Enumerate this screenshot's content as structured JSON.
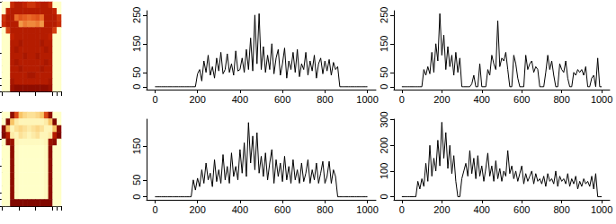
{
  "chart_data": [
    {
      "type": "heatmap",
      "tick_labels": false,
      "color_range": [
        0,
        255
      ],
      "cells": [
        [
          0,
          0,
          180,
          200,
          200,
          190,
          170,
          170,
          190,
          200,
          200,
          180,
          0,
          0
        ],
        [
          0,
          190,
          200,
          200,
          200,
          200,
          200,
          200,
          200,
          200,
          200,
          200,
          190,
          0
        ],
        [
          170,
          200,
          200,
          120,
          140,
          130,
          120,
          130,
          140,
          120,
          200,
          200,
          200,
          170
        ],
        [
          180,
          200,
          200,
          200,
          90,
          110,
          100,
          100,
          110,
          90,
          200,
          200,
          200,
          180
        ],
        [
          0,
          160,
          200,
          200,
          200,
          200,
          200,
          200,
          200,
          200,
          200,
          200,
          160,
          0
        ],
        [
          0,
          0,
          190,
          200,
          200,
          200,
          200,
          200,
          200,
          200,
          200,
          190,
          0,
          0
        ],
        [
          0,
          0,
          200,
          200,
          210,
          200,
          200,
          200,
          200,
          210,
          200,
          200,
          0,
          0
        ],
        [
          0,
          0,
          200,
          210,
          200,
          200,
          200,
          200,
          200,
          200,
          210,
          200,
          0,
          0
        ],
        [
          0,
          0,
          200,
          200,
          200,
          210,
          200,
          200,
          210,
          200,
          200,
          200,
          0,
          0
        ],
        [
          0,
          0,
          200,
          210,
          200,
          200,
          200,
          200,
          200,
          200,
          210,
          200,
          0,
          0
        ],
        [
          0,
          0,
          200,
          200,
          210,
          200,
          200,
          200,
          200,
          210,
          200,
          200,
          0,
          0
        ],
        [
          0,
          0,
          200,
          200,
          200,
          200,
          210,
          210,
          200,
          200,
          200,
          200,
          0,
          0
        ],
        [
          0,
          0,
          210,
          200,
          200,
          200,
          200,
          200,
          200,
          200,
          200,
          210,
          0,
          0
        ],
        [
          0,
          0,
          220,
          230,
          230,
          230,
          230,
          230,
          230,
          230,
          230,
          220,
          0,
          0
        ]
      ]
    },
    {
      "type": "line",
      "color": "#000000",
      "grid": false,
      "xlim": [
        -40,
        1040
      ],
      "xticks": [
        0,
        200,
        400,
        600,
        800,
        1000
      ],
      "ylim": [
        -10,
        265
      ],
      "yticks": [
        0,
        50,
        150,
        250
      ],
      "x": [
        0,
        10,
        20,
        30,
        40,
        50,
        60,
        70,
        80,
        90,
        100,
        110,
        120,
        130,
        140,
        150,
        160,
        170,
        180,
        190,
        200,
        210,
        220,
        230,
        240,
        250,
        260,
        270,
        280,
        290,
        300,
        310,
        320,
        330,
        340,
        350,
        360,
        370,
        380,
        390,
        400,
        410,
        420,
        430,
        440,
        450,
        460,
        470,
        480,
        490,
        500,
        510,
        520,
        530,
        540,
        550,
        560,
        570,
        580,
        590,
        600,
        610,
        620,
        630,
        640,
        650,
        660,
        670,
        680,
        690,
        700,
        710,
        720,
        730,
        740,
        750,
        760,
        770,
        780,
        790,
        800,
        810,
        820,
        830,
        840,
        850,
        860,
        870,
        880,
        890,
        900,
        910,
        920,
        930,
        940,
        950,
        960,
        970,
        980,
        990,
        1000
      ],
      "values": [
        0,
        0,
        0,
        0,
        0,
        0,
        0,
        0,
        0,
        0,
        0,
        0,
        0,
        0,
        0,
        0,
        0,
        0,
        0,
        0,
        45,
        60,
        20,
        90,
        50,
        110,
        40,
        70,
        30,
        100,
        55,
        120,
        45,
        60,
        115,
        50,
        80,
        40,
        125,
        55,
        60,
        100,
        50,
        130,
        60,
        170,
        55,
        250,
        80,
        255,
        60,
        140,
        50,
        110,
        60,
        150,
        45,
        100,
        130,
        40,
        80,
        135,
        30,
        90,
        60,
        120,
        50,
        130,
        35,
        80,
        60,
        120,
        40,
        90,
        55,
        110,
        30,
        80,
        100,
        45,
        90,
        55,
        95,
        40,
        85,
        60,
        70,
        0,
        0,
        0,
        0,
        0,
        0,
        0,
        0,
        0,
        0,
        0,
        0,
        0,
        0
      ]
    },
    {
      "type": "line",
      "color": "#000000",
      "grid": false,
      "xlim": [
        -40,
        1040
      ],
      "xticks": [
        0,
        200,
        400,
        600,
        800,
        1000
      ],
      "ylim": [
        -10,
        265
      ],
      "yticks": [
        0,
        50,
        150,
        250
      ],
      "x": [
        0,
        10,
        20,
        30,
        40,
        50,
        60,
        70,
        80,
        90,
        100,
        110,
        120,
        130,
        140,
        150,
        160,
        170,
        180,
        190,
        200,
        210,
        220,
        230,
        240,
        250,
        260,
        270,
        280,
        290,
        300,
        310,
        320,
        330,
        340,
        350,
        360,
        370,
        380,
        390,
        400,
        410,
        420,
        430,
        440,
        450,
        460,
        470,
        480,
        490,
        500,
        510,
        520,
        530,
        540,
        550,
        560,
        570,
        580,
        590,
        600,
        610,
        620,
        630,
        640,
        650,
        660,
        670,
        680,
        690,
        700,
        710,
        720,
        730,
        740,
        750,
        760,
        770,
        780,
        790,
        800,
        810,
        820,
        830,
        840,
        850,
        860,
        870,
        880,
        890,
        900,
        910,
        920,
        930,
        940,
        950,
        960,
        970,
        980,
        990,
        1000
      ],
      "values": [
        0,
        0,
        0,
        0,
        0,
        0,
        0,
        0,
        0,
        0,
        0,
        60,
        40,
        70,
        45,
        120,
        50,
        150,
        90,
        255,
        110,
        180,
        60,
        140,
        70,
        110,
        40,
        120,
        50,
        100,
        0,
        0,
        0,
        0,
        0,
        10,
        40,
        0,
        0,
        80,
        0,
        0,
        0,
        60,
        40,
        110,
        80,
        60,
        230,
        70,
        100,
        90,
        120,
        60,
        0,
        0,
        110,
        80,
        30,
        0,
        0,
        0,
        110,
        60,
        80,
        90,
        50,
        70,
        60,
        0,
        0,
        0,
        50,
        110,
        60,
        90,
        40,
        0,
        0,
        80,
        60,
        50,
        90,
        30,
        0,
        0,
        50,
        40,
        60,
        50,
        60,
        40,
        70,
        0,
        0,
        30,
        40,
        0,
        100,
        0,
        0
      ]
    },
    {
      "type": "heatmap",
      "tick_labels": false,
      "color_range": [
        0,
        255
      ],
      "cells": [
        [
          0,
          0,
          230,
          150,
          60,
          40,
          30,
          30,
          40,
          60,
          150,
          230,
          0,
          0
        ],
        [
          0,
          240,
          60,
          20,
          10,
          10,
          10,
          10,
          10,
          10,
          20,
          60,
          240,
          0
        ],
        [
          230,
          60,
          10,
          30,
          40,
          30,
          20,
          30,
          40,
          30,
          10,
          10,
          60,
          230
        ],
        [
          240,
          200,
          20,
          10,
          30,
          20,
          10,
          20,
          30,
          10,
          10,
          20,
          200,
          240
        ],
        [
          0,
          230,
          220,
          10,
          5,
          5,
          5,
          5,
          5,
          5,
          10,
          220,
          230,
          0
        ],
        [
          0,
          0,
          230,
          5,
          0,
          0,
          0,
          0,
          0,
          0,
          5,
          230,
          0,
          0
        ],
        [
          0,
          0,
          230,
          5,
          0,
          0,
          0,
          0,
          0,
          0,
          5,
          230,
          0,
          0
        ],
        [
          0,
          0,
          230,
          5,
          0,
          0,
          0,
          0,
          0,
          0,
          5,
          230,
          0,
          0
        ],
        [
          0,
          0,
          230,
          5,
          0,
          0,
          0,
          0,
          0,
          0,
          5,
          230,
          0,
          0
        ],
        [
          0,
          0,
          230,
          5,
          0,
          0,
          0,
          0,
          0,
          0,
          5,
          230,
          0,
          0
        ],
        [
          0,
          0,
          230,
          5,
          0,
          0,
          0,
          0,
          0,
          0,
          5,
          230,
          0,
          0
        ],
        [
          0,
          0,
          230,
          5,
          0,
          0,
          0,
          0,
          0,
          0,
          5,
          230,
          0,
          0
        ],
        [
          0,
          0,
          230,
          5,
          0,
          0,
          0,
          0,
          0,
          0,
          5,
          230,
          0,
          0
        ],
        [
          0,
          0,
          240,
          240,
          240,
          240,
          240,
          240,
          240,
          240,
          240,
          240,
          0,
          0
        ]
      ]
    },
    {
      "type": "line",
      "color": "#000000",
      "grid": false,
      "xlim": [
        -40,
        1040
      ],
      "xticks": [
        0,
        200,
        400,
        600,
        800,
        1000
      ],
      "ylim": [
        -9,
        230
      ],
      "yticks": [
        0,
        50,
        150
      ],
      "x": [
        0,
        10,
        20,
        30,
        40,
        50,
        60,
        70,
        80,
        90,
        100,
        110,
        120,
        130,
        140,
        150,
        160,
        170,
        180,
        190,
        200,
        210,
        220,
        230,
        240,
        250,
        260,
        270,
        280,
        290,
        300,
        310,
        320,
        330,
        340,
        350,
        360,
        370,
        380,
        390,
        400,
        410,
        420,
        430,
        440,
        450,
        460,
        470,
        480,
        490,
        500,
        510,
        520,
        530,
        540,
        550,
        560,
        570,
        580,
        590,
        600,
        610,
        620,
        630,
        640,
        650,
        660,
        670,
        680,
        690,
        700,
        710,
        720,
        730,
        740,
        750,
        760,
        770,
        780,
        790,
        800,
        810,
        820,
        830,
        840,
        850,
        860,
        870,
        880,
        890,
        900,
        910,
        920,
        930,
        940,
        950,
        960,
        970,
        980,
        990,
        1000
      ],
      "values": [
        0,
        0,
        0,
        0,
        0,
        0,
        0,
        0,
        0,
        0,
        0,
        0,
        0,
        0,
        0,
        0,
        0,
        0,
        50,
        20,
        55,
        30,
        80,
        40,
        100,
        50,
        70,
        30,
        110,
        45,
        80,
        40,
        125,
        50,
        90,
        40,
        130,
        60,
        90,
        50,
        140,
        70,
        160,
        60,
        220,
        100,
        180,
        80,
        190,
        70,
        120,
        60,
        130,
        50,
        100,
        140,
        40,
        110,
        60,
        100,
        45,
        120,
        50,
        90,
        40,
        110,
        50,
        80,
        40,
        100,
        45,
        70,
        110,
        40,
        80,
        50,
        100,
        40,
        70,
        105,
        40,
        60,
        105,
        40,
        80,
        60,
        0,
        0,
        0,
        0,
        0,
        0,
        0,
        0,
        0,
        0,
        0,
        0,
        0,
        0,
        0
      ]
    },
    {
      "type": "line",
      "color": "#000000",
      "grid": false,
      "xlim": [
        -40,
        1040
      ],
      "xticks": [
        0,
        200,
        400,
        600,
        800,
        1000
      ],
      "ylim": [
        -12,
        302
      ],
      "yticks": [
        0,
        100,
        200,
        300
      ],
      "x": [
        0,
        10,
        20,
        30,
        40,
        50,
        60,
        70,
        80,
        90,
        100,
        110,
        120,
        130,
        140,
        150,
        160,
        170,
        180,
        190,
        200,
        210,
        220,
        230,
        240,
        250,
        260,
        270,
        280,
        290,
        300,
        310,
        320,
        330,
        340,
        350,
        360,
        370,
        380,
        390,
        400,
        410,
        420,
        430,
        440,
        450,
        460,
        470,
        480,
        490,
        500,
        510,
        520,
        530,
        540,
        550,
        560,
        570,
        580,
        590,
        600,
        610,
        620,
        630,
        640,
        650,
        660,
        670,
        680,
        690,
        700,
        710,
        720,
        730,
        740,
        750,
        760,
        770,
        780,
        790,
        800,
        810,
        820,
        830,
        840,
        850,
        860,
        870,
        880,
        890,
        900,
        910,
        920,
        930,
        940,
        950,
        960,
        970,
        980,
        990,
        1000
      ],
      "values": [
        0,
        0,
        0,
        0,
        0,
        0,
        0,
        0,
        60,
        30,
        70,
        40,
        130,
        60,
        200,
        80,
        150,
        100,
        220,
        120,
        290,
        150,
        250,
        110,
        200,
        90,
        160,
        60,
        0,
        0,
        70,
        100,
        130,
        80,
        180,
        90,
        150,
        70,
        160,
        80,
        120,
        60,
        110,
        170,
        80,
        120,
        60,
        140,
        70,
        110,
        60,
        100,
        80,
        180,
        90,
        120,
        70,
        100,
        60,
        90,
        120,
        50,
        90,
        60,
        80,
        100,
        50,
        90,
        60,
        70,
        50,
        80,
        40,
        90,
        60,
        70,
        50,
        100,
        40,
        80,
        60,
        70,
        50,
        90,
        40,
        70,
        50,
        80,
        30,
        60,
        40,
        70,
        50,
        60,
        40,
        80,
        30,
        90,
        0,
        0,
        0
      ]
    }
  ]
}
